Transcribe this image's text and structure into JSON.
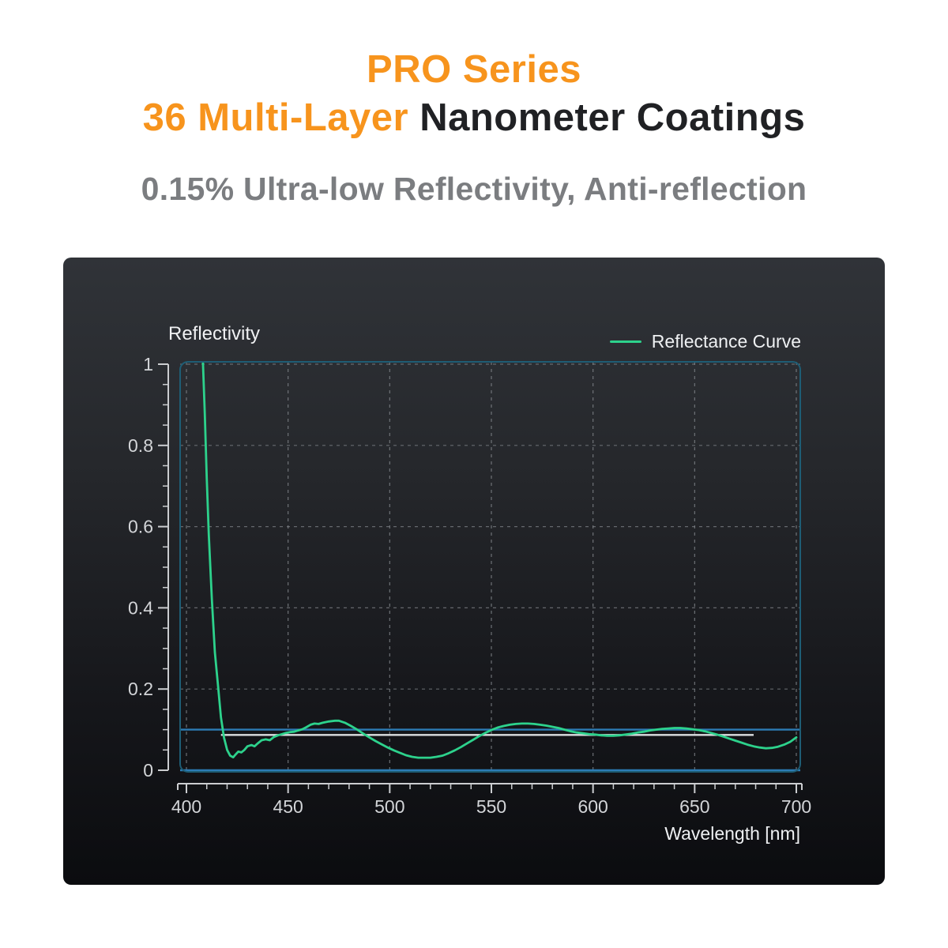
{
  "header": {
    "line1": "PRO Series",
    "line2_highlight": "36 Multi-Layer",
    "line2_rest": " Nanometer Coatings",
    "subtitle": "0.15% Ultra-low Reflectivity, Anti-reflection",
    "accent_color": "#F7941D",
    "dark_color": "#202124",
    "subtitle_color": "#7B7D80"
  },
  "chart_data": {
    "type": "line",
    "ylabel": "Reflectivity",
    "xlabel": "Wavelength [nm]",
    "xlim": [
      400,
      700
    ],
    "ylim": [
      0,
      1
    ],
    "grid": "dashed",
    "legend_position": "top-right",
    "legend": {
      "label": "Reflectance Curve",
      "color": "#2DD28C"
    },
    "x_ticks": [
      {
        "value": 400,
        "label": "400"
      },
      {
        "value": 450,
        "label": "450"
      },
      {
        "value": 500,
        "label": "500"
      },
      {
        "value": 550,
        "label": "550"
      },
      {
        "value": 600,
        "label": "600"
      },
      {
        "value": 650,
        "label": "650"
      },
      {
        "value": 700,
        "label": "700"
      }
    ],
    "x_minor_step": 10,
    "y_ticks": [
      {
        "value": 0,
        "label": "0"
      },
      {
        "value": 0.2,
        "label": "0.2"
      },
      {
        "value": 0.4,
        "label": "0.4"
      },
      {
        "value": 0.6,
        "label": "0.6"
      },
      {
        "value": 0.8,
        "label": "0.8"
      },
      {
        "value": 1,
        "label": "1"
      }
    ],
    "y_minor_step": 0.05,
    "plot_border_color": "#1E5D75",
    "grid_color": "#7C8085",
    "axis_color": "#CBCDD0",
    "annotations": {
      "hlines": [
        {
          "name": "reference-line-0.1",
          "y": 0.1,
          "from_x": 400,
          "to_x": 700,
          "color": "#2C7CB5"
        },
        {
          "name": "average-line",
          "y": 0.087,
          "from_x": 417,
          "to_x": 679,
          "color": "#DDDFE1"
        },
        {
          "name": "baseline-0",
          "y": 0.0,
          "from_x": 400,
          "to_x": 700,
          "color": "#2C7CB5"
        }
      ]
    },
    "series": [
      {
        "name": "Reflectance Curve",
        "color": "#2DD28C",
        "points": [
          [
            408,
            1.02
          ],
          [
            409,
            0.88
          ],
          [
            410,
            0.72
          ],
          [
            411,
            0.58
          ],
          [
            412.5,
            0.42
          ],
          [
            414,
            0.29
          ],
          [
            415.5,
            0.21
          ],
          [
            417,
            0.13
          ],
          [
            418.5,
            0.08
          ],
          [
            420,
            0.05
          ],
          [
            421.5,
            0.036
          ],
          [
            423,
            0.032
          ],
          [
            424,
            0.038
          ],
          [
            425.5,
            0.046
          ],
          [
            427,
            0.044
          ],
          [
            428.5,
            0.05
          ],
          [
            430,
            0.059
          ],
          [
            432,
            0.062
          ],
          [
            433.5,
            0.059
          ],
          [
            435,
            0.066
          ],
          [
            437,
            0.074
          ],
          [
            439,
            0.076
          ],
          [
            441,
            0.074
          ],
          [
            443,
            0.082
          ],
          [
            445,
            0.086
          ],
          [
            447,
            0.089
          ],
          [
            449,
            0.092
          ],
          [
            451,
            0.094
          ],
          [
            453,
            0.095
          ],
          [
            455,
            0.098
          ],
          [
            457,
            0.101
          ],
          [
            459,
            0.106
          ],
          [
            461,
            0.112
          ],
          [
            463,
            0.115
          ],
          [
            465,
            0.114
          ],
          [
            467,
            0.117
          ],
          [
            470,
            0.12
          ],
          [
            473,
            0.122
          ],
          [
            475,
            0.122
          ],
          [
            478,
            0.117
          ],
          [
            481,
            0.109
          ],
          [
            484,
            0.1
          ],
          [
            487,
            0.09
          ],
          [
            490,
            0.081
          ],
          [
            493,
            0.072
          ],
          [
            496,
            0.064
          ],
          [
            499,
            0.056
          ],
          [
            502,
            0.049
          ],
          [
            505,
            0.043
          ],
          [
            508,
            0.037
          ],
          [
            511,
            0.033
          ],
          [
            514,
            0.031
          ],
          [
            517,
            0.031
          ],
          [
            520,
            0.031
          ],
          [
            523,
            0.033
          ],
          [
            526,
            0.036
          ],
          [
            529,
            0.042
          ],
          [
            532,
            0.049
          ],
          [
            535,
            0.057
          ],
          [
            538,
            0.066
          ],
          [
            541,
            0.075
          ],
          [
            544,
            0.084
          ],
          [
            547,
            0.092
          ],
          [
            550,
            0.099
          ],
          [
            553,
            0.105
          ],
          [
            556,
            0.109
          ],
          [
            559,
            0.112
          ],
          [
            562,
            0.114
          ],
          [
            565,
            0.115
          ],
          [
            568,
            0.115
          ],
          [
            571,
            0.114
          ],
          [
            574,
            0.112
          ],
          [
            577,
            0.11
          ],
          [
            580,
            0.107
          ],
          [
            583,
            0.104
          ],
          [
            586,
            0.1
          ],
          [
            589,
            0.096
          ],
          [
            592,
            0.093
          ],
          [
            595,
            0.091
          ],
          [
            598,
            0.089
          ],
          [
            601,
            0.088
          ],
          [
            604,
            0.086
          ],
          [
            607,
            0.085
          ],
          [
            610,
            0.085
          ],
          [
            613,
            0.086
          ],
          [
            616,
            0.088
          ],
          [
            619,
            0.09
          ],
          [
            622,
            0.093
          ],
          [
            625,
            0.095
          ],
          [
            628,
            0.098
          ],
          [
            631,
            0.1
          ],
          [
            634,
            0.102
          ],
          [
            637,
            0.103
          ],
          [
            640,
            0.104
          ],
          [
            643,
            0.104
          ],
          [
            646,
            0.103
          ],
          [
            649,
            0.101
          ],
          [
            652,
            0.099
          ],
          [
            655,
            0.096
          ],
          [
            658,
            0.092
          ],
          [
            661,
            0.088
          ],
          [
            664,
            0.083
          ],
          [
            667,
            0.078
          ],
          [
            670,
            0.073
          ],
          [
            673,
            0.068
          ],
          [
            676,
            0.063
          ],
          [
            679,
            0.059
          ],
          [
            682,
            0.056
          ],
          [
            685,
            0.054
          ],
          [
            688,
            0.055
          ],
          [
            691,
            0.058
          ],
          [
            694,
            0.063
          ],
          [
            697,
            0.07
          ],
          [
            700,
            0.081
          ]
        ]
      }
    ]
  }
}
